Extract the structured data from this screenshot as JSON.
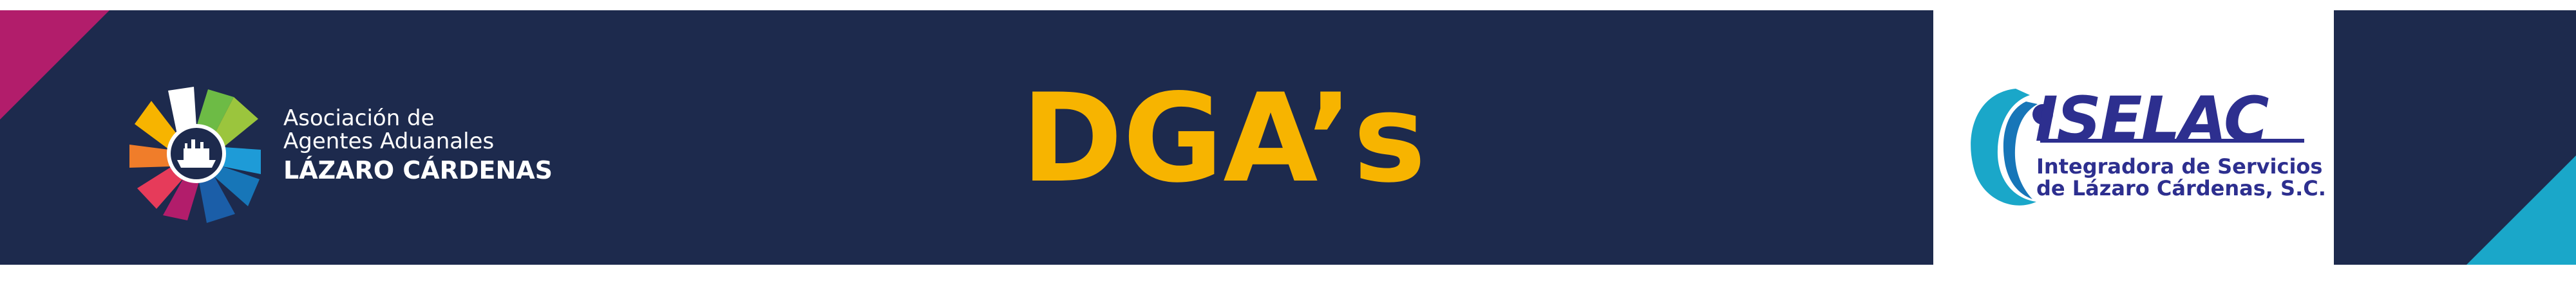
{
  "banner": {
    "title": "DGA’s",
    "left_logo": {
      "line1": "Asociación de",
      "line2": "Agentes Aduanales",
      "name": "LÁZARO CÁRDENAS",
      "icon": "ship-pinwheel-logo"
    },
    "right_logo": {
      "wordmark": "ISELAC",
      "line1": "Integradora de Servicios",
      "line2": "de Lázaro Cárdenas, S.C.",
      "icon": "iselac-wave-logo"
    },
    "colors": {
      "background": "#1d2a4d",
      "title": "#f7b400",
      "accent_magenta": "#b21d6b",
      "accent_cyan": "#1aa7c9",
      "iselac_blue": "#2d2f8f"
    }
  }
}
